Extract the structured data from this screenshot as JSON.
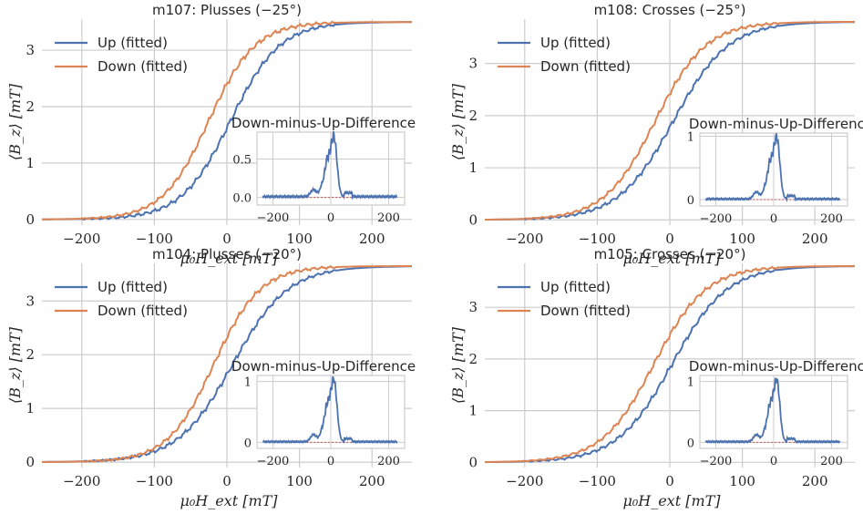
{
  "colors": {
    "up": "#4c72b0",
    "down": "#dd8452",
    "zero_line": "#c44e52",
    "grid": "#cccccc",
    "spine": "#cccccc"
  },
  "chart_data": [
    {
      "type": "line",
      "title": "m107: Plusses (−25°)",
      "xlabel": "μ₀H_ext [mT]",
      "ylabel": "⟨B_z⟩ [mT]",
      "xlim": [
        -255,
        255
      ],
      "ylim": [
        -0.1,
        3.55
      ],
      "xticks": [
        -200,
        -100,
        0,
        100,
        200
      ],
      "yticks": [
        0,
        1,
        2,
        3
      ],
      "legend": [
        "Up (fitted)",
        "Down (fitted)"
      ],
      "legend_position": "upper-left",
      "series": [
        {
          "name": "Up (fitted)",
          "sat": 3.5,
          "center": 5,
          "width": 34
        },
        {
          "name": "Down (fitted)",
          "sat": 3.5,
          "center": -25,
          "width": 32
        }
      ],
      "inset": {
        "title": "Down-minus-Up-Difference",
        "xlim": [
          -255,
          255
        ],
        "ylim": [
          -0.1,
          0.85
        ],
        "xticks": [
          -200,
          0,
          200
        ],
        "yticks": [
          0.0,
          0.5
        ],
        "ytick_labels": [
          "0.0",
          "0.5"
        ]
      }
    },
    {
      "type": "line",
      "title": "m108: Crosses (−25°)",
      "xlabel": "μ₀H_ext [mT]",
      "ylabel": "⟨B_z⟩ [mT]",
      "xlim": [
        -255,
        255
      ],
      "ylim": [
        -0.1,
        3.85
      ],
      "xticks": [
        -200,
        -100,
        0,
        100,
        200
      ],
      "yticks": [
        0,
        1,
        2,
        3
      ],
      "legend": [
        "Up (fitted)",
        "Down (fitted)"
      ],
      "legend_position": "upper-left",
      "series": [
        {
          "name": "Up (fitted)",
          "sat": 3.8,
          "center": 5,
          "width": 38
        },
        {
          "name": "Down (fitted)",
          "sat": 3.8,
          "center": -20,
          "width": 35
        }
      ],
      "inset": {
        "title": "Down-minus-Up-Difference",
        "xlim": [
          -255,
          255
        ],
        "ylim": [
          -0.1,
          1.05
        ],
        "xticks": [
          -200,
          0,
          200
        ],
        "yticks": [
          0,
          1
        ],
        "ytick_labels": [
          "0",
          "1"
        ]
      }
    },
    {
      "type": "line",
      "title": "m104: Plusses (−20°)",
      "xlabel": "μ₀H_ext [mT]",
      "ylabel": "⟨B_z⟩ [mT]",
      "xlim": [
        -255,
        255
      ],
      "ylim": [
        -0.1,
        3.7
      ],
      "xticks": [
        -200,
        -100,
        0,
        100,
        200
      ],
      "yticks": [
        0,
        1,
        2,
        3
      ],
      "legend": [
        "Up (fitted)",
        "Down (fitted)"
      ],
      "legend_position": "upper-left",
      "series": [
        {
          "name": "Up (fitted)",
          "sat": 3.65,
          "center": 8,
          "width": 38
        },
        {
          "name": "Down (fitted)",
          "sat": 3.65,
          "center": -18,
          "width": 32
        }
      ],
      "inset": {
        "title": "Down-minus-Up-Difference",
        "xlim": [
          -255,
          255
        ],
        "ylim": [
          -0.1,
          1.1
        ],
        "xticks": [
          -200,
          0,
          200
        ],
        "yticks": [
          0,
          1
        ],
        "ytick_labels": [
          "0",
          "1"
        ]
      }
    },
    {
      "type": "line",
      "title": "m105: Crosses (−20°)",
      "xlabel": "μ₀H_ext [mT]",
      "ylabel": "⟨B_z⟩ [mT]",
      "xlim": [
        -255,
        255
      ],
      "ylim": [
        -0.1,
        3.85
      ],
      "xticks": [
        -200,
        -100,
        0,
        100,
        200
      ],
      "yticks": [
        0,
        1,
        2,
        3
      ],
      "legend": [
        "Up (fitted)",
        "Down (fitted)"
      ],
      "legend_position": "upper-left",
      "series": [
        {
          "name": "Up (fitted)",
          "sat": 3.8,
          "center": 3,
          "width": 38
        },
        {
          "name": "Down (fitted)",
          "sat": 3.8,
          "center": -22,
          "width": 36
        }
      ],
      "inset": {
        "title": "Down-minus-Up-Difference",
        "xlim": [
          -255,
          255
        ],
        "ylim": [
          -0.1,
          1.1
        ],
        "xticks": [
          -200,
          0,
          200
        ],
        "yticks": [
          0,
          1
        ],
        "ytick_labels": [
          "0",
          "1"
        ]
      }
    }
  ]
}
